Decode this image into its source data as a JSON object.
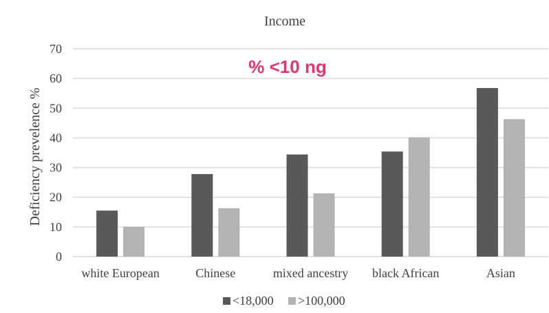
{
  "chart_data": {
    "type": "bar",
    "title": "Income",
    "annotation": "% <10 ng",
    "ylabel": "Deficiency  prevelence %",
    "xlabel": "",
    "ylim": [
      0,
      70
    ],
    "yticks": [
      0,
      10,
      20,
      30,
      40,
      50,
      60,
      70
    ],
    "grid": true,
    "legend_position": "bottom",
    "categories": [
      "white European",
      "Chinese",
      "mixed ancestry",
      "black African",
      "Asian"
    ],
    "series": [
      {
        "name": "<18,000",
        "color": "#595959",
        "values": [
          15.5,
          27.8,
          34.4,
          35.4,
          56.8
        ]
      },
      {
        "name": ">100,000",
        "color": "#b3b3b3",
        "values": [
          10.0,
          16.3,
          21.3,
          40.2,
          46.3
        ]
      }
    ],
    "annotation_color": "#e8336f",
    "grid_color": "#d9d9d9",
    "text_color": "#404040"
  }
}
